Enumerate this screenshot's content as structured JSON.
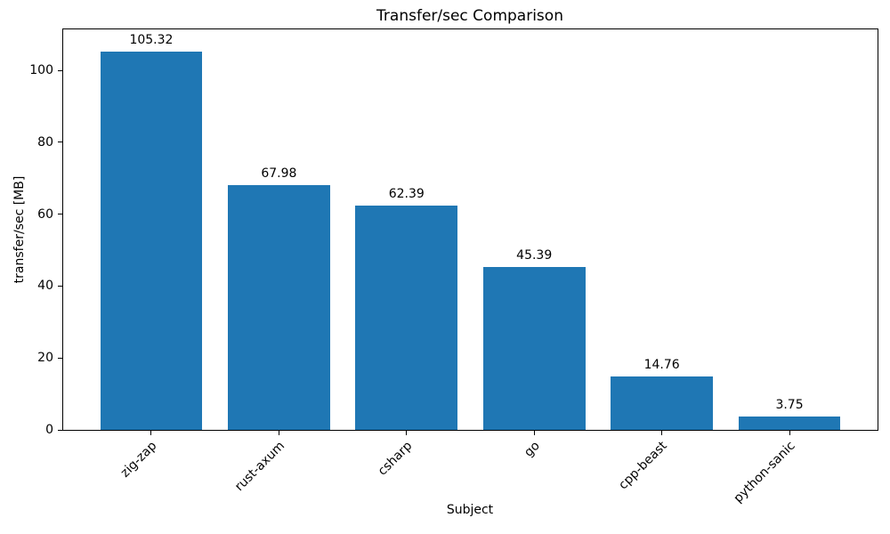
{
  "chart_data": {
    "type": "bar",
    "title": "Transfer/sec Comparison",
    "xlabel": "Subject",
    "ylabel": "transfer/sec [MB]",
    "categories": [
      "zig-zap",
      "rust-axum",
      "csharp",
      "go",
      "cpp-beast",
      "python-sanic"
    ],
    "values": [
      105.32,
      67.98,
      62.39,
      45.39,
      14.76,
      3.75
    ],
    "value_labels": [
      "105.32",
      "67.98",
      "62.39",
      "45.39",
      "14.76",
      "3.75"
    ],
    "yticks": [
      0,
      20,
      40,
      60,
      80,
      100
    ],
    "ylim": [
      0,
      111.4
    ],
    "bar_color": "#1f77b4",
    "grid": false,
    "legend_position": "none",
    "x_tick_rotation_deg": 45
  }
}
